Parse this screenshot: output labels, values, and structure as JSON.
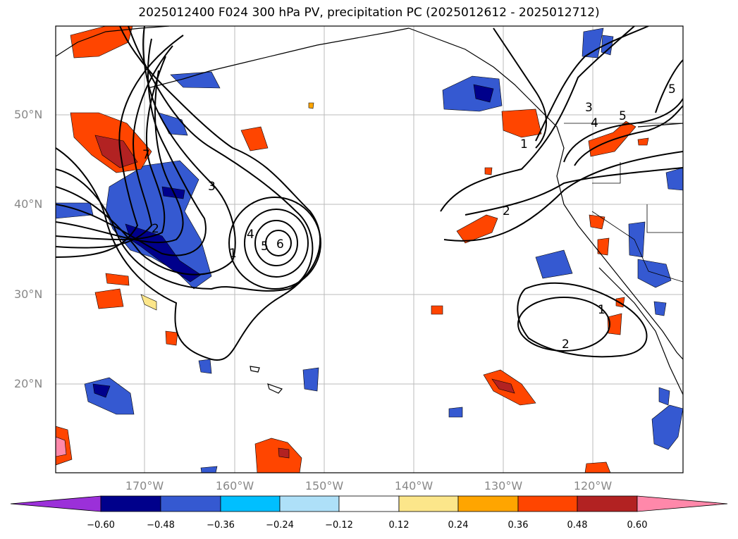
{
  "title": "2025012400 F024 300 hPa PV, precipitation PC (2025012612 - 2025012712)",
  "lat_labels": [
    "50°N",
    "40°N",
    "30°N",
    "20°N"
  ],
  "lon_labels": [
    "170°W",
    "160°W",
    "150°W",
    "140°W",
    "130°W",
    "120°W"
  ],
  "colorbar": {
    "ticks": [
      "−0.60",
      "−0.48",
      "−0.36",
      "−0.24",
      "−0.12",
      "0.12",
      "0.24",
      "0.36",
      "0.48",
      "0.60"
    ],
    "colors": [
      "#9b30d9",
      "#00008b",
      "#3559d1",
      "#00bfff",
      "#aee0f8",
      "#ffffff",
      "#fce68a",
      "#ffa500",
      "#ff4500",
      "#b22222",
      "#ff88aa"
    ]
  },
  "contour_labels": [
    "1",
    "2",
    "3",
    "4",
    "5",
    "6",
    "7",
    "1",
    "2",
    "3",
    "4",
    "5",
    "1",
    "2",
    "5"
  ]
}
